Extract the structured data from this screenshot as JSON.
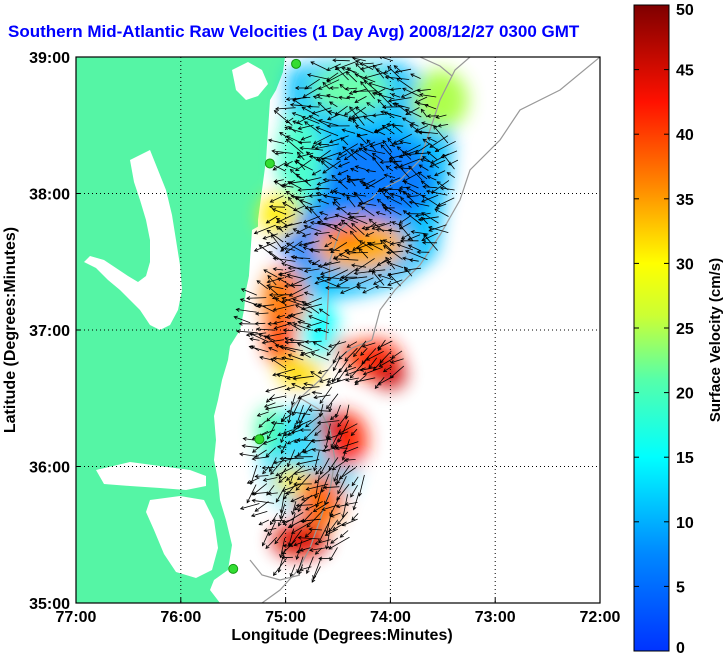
{
  "title": "Southern Mid-Atlantic Raw Velocities (1 Day Avg) 2008/12/27 0300 GMT",
  "x_axis": {
    "label": "Longitude (Degrees:Minutes)",
    "ticks": [
      "77:00",
      "76:00",
      "75:00",
      "74:00",
      "73:00",
      "72:00"
    ],
    "range": [
      -77,
      -72
    ]
  },
  "y_axis": {
    "label": "Latitude (Degrees:Minutes)",
    "ticks": [
      "39:00",
      "38:00",
      "37:00",
      "36:00",
      "35:00"
    ],
    "range": [
      35,
      39
    ]
  },
  "colorbar": {
    "label": "Surface Velocity (cm/s)",
    "ticks": [
      "0",
      "5",
      "10",
      "15",
      "20",
      "25",
      "30",
      "35",
      "40",
      "45",
      "50"
    ],
    "range": [
      0,
      50
    ],
    "colormap": "jet"
  },
  "colors": {
    "land": "#55f5a5",
    "title": "#0000ff",
    "station": "#33dd33",
    "contour": "#999999"
  },
  "grid": true,
  "stations": [
    {
      "lon": -74.9,
      "lat": 38.95
    },
    {
      "lon": -75.15,
      "lat": 38.22
    },
    {
      "lon": -75.25,
      "lat": 36.2
    },
    {
      "lon": -75.5,
      "lat": 35.25
    }
  ]
}
